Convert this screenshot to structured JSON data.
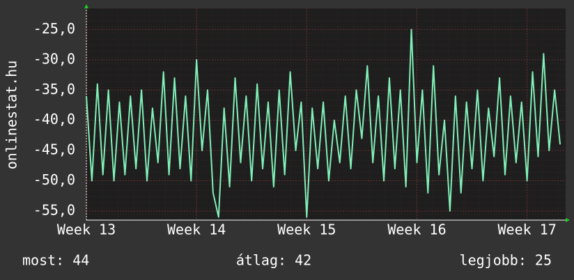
{
  "chart_data": {
    "type": "line",
    "y_label": "onlinestat.hu",
    "xlim": [
      13,
      17.35
    ],
    "xticks": [
      {
        "value": 13,
        "label": "Week 13"
      },
      {
        "value": 14,
        "label": "Week 14"
      },
      {
        "value": 15,
        "label": "Week 15"
      },
      {
        "value": 16,
        "label": "Week 16"
      },
      {
        "value": 17,
        "label": "Week 17"
      }
    ],
    "ylim": [
      -56.5,
      -21.5
    ],
    "yticks": [
      {
        "value": -25,
        "label": "-25,0"
      },
      {
        "value": -30,
        "label": "-30,0"
      },
      {
        "value": -35,
        "label": "-35,0"
      },
      {
        "value": -40,
        "label": "-40,0"
      },
      {
        "value": -45,
        "label": "-45,0"
      },
      {
        "value": -50,
        "label": "-50,0"
      },
      {
        "value": -55,
        "label": "-55,0"
      }
    ],
    "grid": true,
    "x": [
      13.0,
      13.05,
      13.1,
      13.15,
      13.2,
      13.25,
      13.3,
      13.35,
      13.4,
      13.45,
      13.5,
      13.55,
      13.6,
      13.65,
      13.7,
      13.75,
      13.8,
      13.85,
      13.9,
      13.95,
      14.0,
      14.05,
      14.1,
      14.15,
      14.2,
      14.25,
      14.3,
      14.35,
      14.4,
      14.45,
      14.5,
      14.55,
      14.6,
      14.65,
      14.7,
      14.75,
      14.8,
      14.85,
      14.9,
      14.95,
      15.0,
      15.05,
      15.1,
      15.15,
      15.2,
      15.25,
      15.3,
      15.35,
      15.4,
      15.45,
      15.5,
      15.55,
      15.6,
      15.65,
      15.7,
      15.75,
      15.8,
      15.85,
      15.9,
      15.95,
      16.0,
      16.05,
      16.1,
      16.15,
      16.2,
      16.25,
      16.3,
      16.35,
      16.4,
      16.45,
      16.5,
      16.55,
      16.6,
      16.65,
      16.7,
      16.75,
      16.8,
      16.85,
      16.9,
      16.95,
      17.0,
      17.05,
      17.1,
      17.15,
      17.2,
      17.25,
      17.3
    ],
    "series": [
      {
        "color": "#80f0b8",
        "values": [
          -36,
          -50,
          -34,
          -49,
          -35,
          -50,
          -37,
          -49,
          -36,
          -48,
          -35,
          -50,
          -38,
          -47,
          -32,
          -49,
          -33,
          -48,
          -36,
          -50,
          -30,
          -45,
          -35,
          -52,
          -56,
          -38,
          -51,
          -33,
          -47,
          -36,
          -50,
          -34,
          -48,
          -37,
          -51,
          -35,
          -49,
          -32,
          -45,
          -37,
          -56,
          -38,
          -48,
          -37,
          -50,
          -40,
          -47,
          -36,
          -48,
          -35,
          -43,
          -31,
          -47,
          -36,
          -50,
          -33,
          -48,
          -35,
          -51,
          -25,
          -47,
          -35,
          -52,
          -31,
          -49,
          -40,
          -55,
          -36,
          -52,
          -37,
          -48,
          -35,
          -50,
          -38,
          -46,
          -33,
          -49,
          -36,
          -47,
          -37,
          -50,
          -32,
          -46,
          -29,
          -45,
          -35,
          -44
        ]
      }
    ],
    "footer": {
      "current": "most: 44",
      "average": "átlag: 42",
      "best": "legjobb: 25"
    }
  }
}
